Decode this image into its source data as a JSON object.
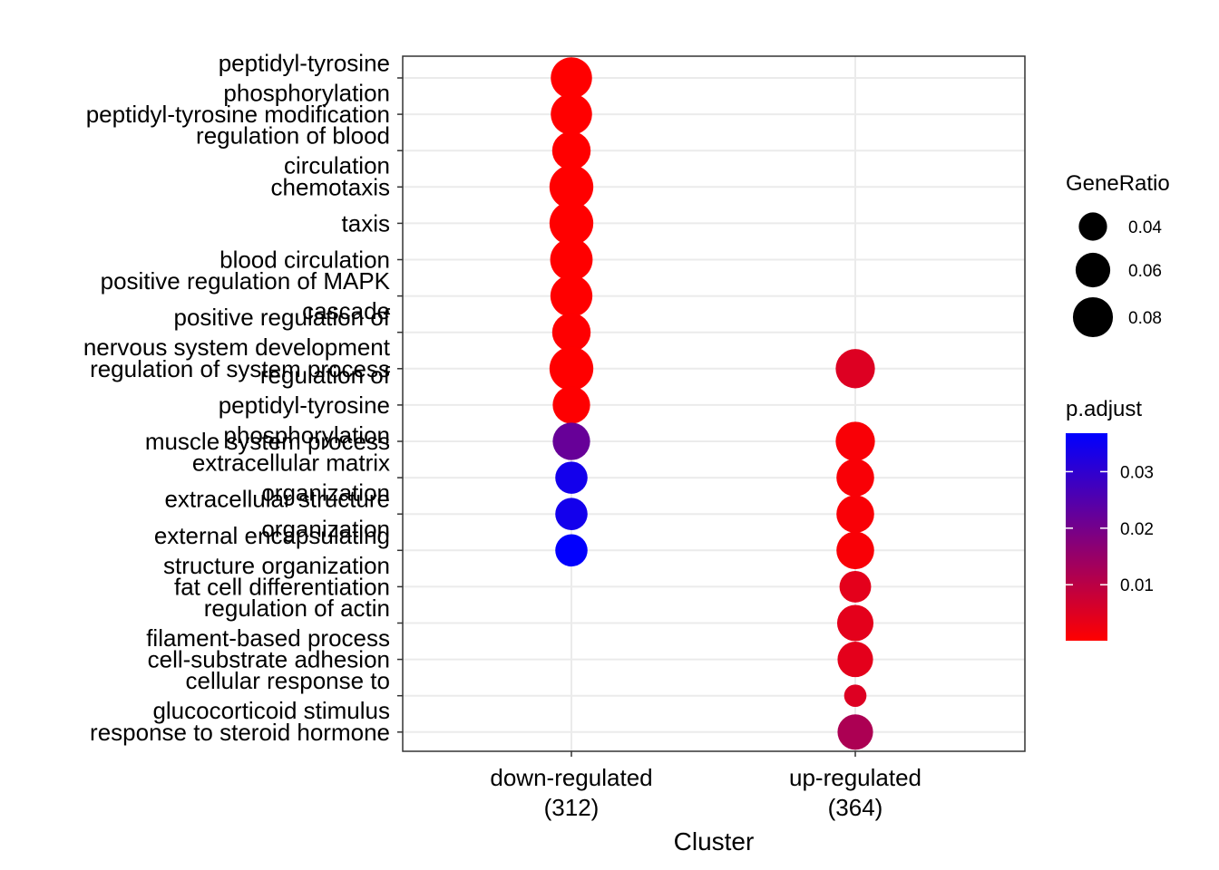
{
  "chart_data": {
    "type": "scatter",
    "title": "",
    "xlabel": "Cluster",
    "ylabel": "",
    "clusters": [
      "down-regulated\n(312)",
      "up-regulated\n(364)"
    ],
    "terms": [
      "peptidyl-tyrosine\nphosphorylation",
      "peptidyl-tyrosine modification",
      "regulation of blood\ncirculation",
      "chemotaxis",
      "taxis",
      "blood circulation",
      "positive regulation of MAPK\ncascade",
      "positive regulation of\nnervous system development",
      "regulation of system process",
      "regulation of\npeptidyl-tyrosine\nphosphorylation",
      "muscle system process",
      "extracellular matrix\norganization",
      "extracellular structure\norganization",
      "external encapsulating\nstructure organization",
      "fat cell differentiation",
      "regulation of actin\nfilament-based process",
      "cell-substrate adhesion",
      "cellular response to\nglucocorticoid stimulus",
      "response to steroid hormone"
    ],
    "points": [
      {
        "cluster": "down-regulated\n(312)",
        "term": "peptidyl-tyrosine\nphosphorylation",
        "gene_ratio": 0.085,
        "p_adjust": 0.0001
      },
      {
        "cluster": "down-regulated\n(312)",
        "term": "peptidyl-tyrosine modification",
        "gene_ratio": 0.085,
        "p_adjust": 0.0001
      },
      {
        "cluster": "down-regulated\n(312)",
        "term": "regulation of blood\ncirculation",
        "gene_ratio": 0.074,
        "p_adjust": 0.0001
      },
      {
        "cluster": "down-regulated\n(312)",
        "term": "chemotaxis",
        "gene_ratio": 0.096,
        "p_adjust": 0.0001
      },
      {
        "cluster": "down-regulated\n(312)",
        "term": "taxis",
        "gene_ratio": 0.096,
        "p_adjust": 0.0001
      },
      {
        "cluster": "down-regulated\n(312)",
        "term": "blood circulation",
        "gene_ratio": 0.09,
        "p_adjust": 0.0001
      },
      {
        "cluster": "down-regulated\n(312)",
        "term": "positive regulation of MAPK\ncascade",
        "gene_ratio": 0.088,
        "p_adjust": 0.0001
      },
      {
        "cluster": "down-regulated\n(312)",
        "term": "positive regulation of\nnervous system development",
        "gene_ratio": 0.074,
        "p_adjust": 0.0002
      },
      {
        "cluster": "down-regulated\n(312)",
        "term": "regulation of system process",
        "gene_ratio": 0.096,
        "p_adjust": 0.0001
      },
      {
        "cluster": "down-regulated\n(312)",
        "term": "regulation of\npeptidyl-tyrosine\nphosphorylation",
        "gene_ratio": 0.07,
        "p_adjust": 0.0003
      },
      {
        "cluster": "down-regulated\n(312)",
        "term": "muscle system process",
        "gene_ratio": 0.07,
        "p_adjust": 0.022
      },
      {
        "cluster": "down-regulated\n(312)",
        "term": "extracellular matrix\norganization",
        "gene_ratio": 0.052,
        "p_adjust": 0.034
      },
      {
        "cluster": "down-regulated\n(312)",
        "term": "extracellular structure\norganization",
        "gene_ratio": 0.052,
        "p_adjust": 0.034
      },
      {
        "cluster": "down-regulated\n(312)",
        "term": "external encapsulating\nstructure organization",
        "gene_ratio": 0.052,
        "p_adjust": 0.0365
      },
      {
        "cluster": "up-regulated\n(364)",
        "term": "regulation of system process",
        "gene_ratio": 0.077,
        "p_adjust": 0.005
      },
      {
        "cluster": "up-regulated\n(364)",
        "term": "muscle system process",
        "gene_ratio": 0.077,
        "p_adjust": 0.001
      },
      {
        "cluster": "up-regulated\n(364)",
        "term": "extracellular matrix\norganization",
        "gene_ratio": 0.071,
        "p_adjust": 0.001
      },
      {
        "cluster": "up-regulated\n(364)",
        "term": "extracellular structure\norganization",
        "gene_ratio": 0.071,
        "p_adjust": 0.001
      },
      {
        "cluster": "up-regulated\n(364)",
        "term": "external encapsulating\nstructure organization",
        "gene_ratio": 0.071,
        "p_adjust": 0.001
      },
      {
        "cluster": "up-regulated\n(364)",
        "term": "fat cell differentiation",
        "gene_ratio": 0.05,
        "p_adjust": 0.004
      },
      {
        "cluster": "up-regulated\n(364)",
        "term": "regulation of actin\nfilament-based process",
        "gene_ratio": 0.066,
        "p_adjust": 0.004
      },
      {
        "cluster": "up-regulated\n(364)",
        "term": "cell-substrate adhesion",
        "gene_ratio": 0.063,
        "p_adjust": 0.004
      },
      {
        "cluster": "up-regulated\n(364)",
        "term": "cellular response to\nglucocorticoid stimulus",
        "gene_ratio": 0.025,
        "p_adjust": 0.005
      },
      {
        "cluster": "up-regulated\n(364)",
        "term": "response to steroid hormone",
        "gene_ratio": 0.063,
        "p_adjust": 0.012
      }
    ],
    "size_legend": {
      "title": "GeneRatio",
      "values": [
        0.04,
        0.06,
        0.08
      ]
    },
    "color_legend": {
      "title": "p.adjust",
      "ticks": [
        0.01,
        0.02,
        0.03
      ],
      "range": [
        0.0001,
        0.0368
      ],
      "low_color": "#ff0000",
      "high_color": "#0000ff"
    },
    "grid": true,
    "legend_position": "right"
  }
}
